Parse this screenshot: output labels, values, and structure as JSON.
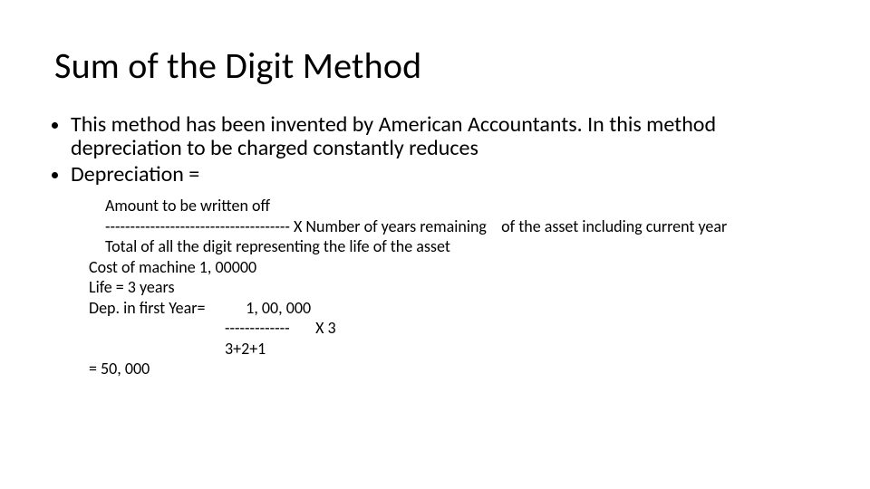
{
  "title": "Sum of the Digit Method",
  "bullets": [
    "This method has been invented by American Accountants. In this method depreciation to be charged constantly reduces",
    "Depreciation ="
  ],
  "detail_lines": [
    {
      "text": "Amount to be written off",
      "cls": "indent1"
    },
    {
      "text": "------------------------------------- X Number of years remaining    of the asset including current year",
      "cls": "indent1"
    },
    {
      "text": "Total of all the digit representing the life of the asset",
      "cls": "indent1"
    },
    {
      "text": "Cost of machine 1, 00000",
      "cls": ""
    },
    {
      "text": "Life = 3 years",
      "cls": ""
    },
    {
      "text": "Dep. in first Year=           1, 00, 000",
      "cls": ""
    },
    {
      "text": "-------------       X 3",
      "cls": "indent2"
    },
    {
      "text": "3+2+1",
      "cls": "indent2"
    },
    {
      "text": "= 50, 000",
      "cls": ""
    }
  ]
}
